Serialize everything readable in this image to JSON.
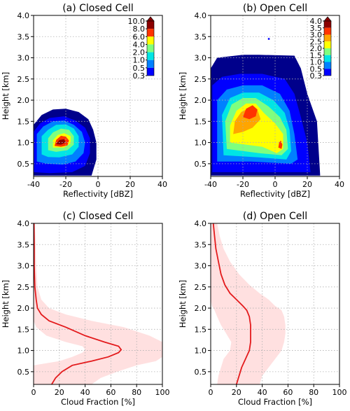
{
  "chart_data": [
    {
      "type": "heatmap",
      "title": "(a) Closed Cell",
      "xlabel": "Reflectivity [dBZ]",
      "ylabel": "Height [km]",
      "xlim": [
        -40,
        40
      ],
      "ylim": [
        0.2,
        4.0
      ],
      "xticks": [
        "-40",
        "-20",
        "0",
        "20",
        "40"
      ],
      "yticks": [
        "0.5",
        "1.0",
        "1.5",
        "2.0",
        "2.5",
        "3.0",
        "3.5",
        "4.0"
      ],
      "grid": true,
      "colorbar": {
        "placement": "inside upper-right",
        "levels": [
          0.3,
          0.5,
          1.0,
          2.0,
          4.0,
          6.0,
          8.0,
          10.0
        ],
        "labels": [
          "10.0",
          "8.0",
          "6.0",
          "4.0",
          "2.0",
          "1.0",
          "0.5",
          "0.3"
        ]
      },
      "contours": [
        {
          "level": 0.3,
          "color": "#00008b",
          "points": [
            [
              -40,
              0.22
            ],
            [
              -40,
              1.42
            ],
            [
              -35,
              1.65
            ],
            [
              -28,
              1.78
            ],
            [
              -20,
              1.8
            ],
            [
              -12,
              1.72
            ],
            [
              -6,
              1.55
            ],
            [
              -3,
              1.3
            ],
            [
              -1,
              1.0
            ],
            [
              -1,
              0.6
            ],
            [
              -4,
              0.22
            ]
          ]
        },
        {
          "level": 0.5,
          "color": "#0000ff",
          "points": [
            [
              -40,
              0.3
            ],
            [
              -40,
              1.25
            ],
            [
              -36,
              1.45
            ],
            [
              -30,
              1.58
            ],
            [
              -21,
              1.62
            ],
            [
              -14,
              1.52
            ],
            [
              -8,
              1.35
            ],
            [
              -5,
              1.1
            ],
            [
              -5,
              0.75
            ],
            [
              -8,
              0.45
            ],
            [
              -16,
              0.3
            ],
            [
              -30,
              0.28
            ]
          ]
        },
        {
          "level": 1.0,
          "color": "#0080ff",
          "points": [
            [
              -38,
              0.55
            ],
            [
              -38,
              1.2
            ],
            [
              -34,
              1.38
            ],
            [
              -28,
              1.5
            ],
            [
              -21,
              1.52
            ],
            [
              -15,
              1.42
            ],
            [
              -10,
              1.25
            ],
            [
              -8,
              1.0
            ],
            [
              -9,
              0.75
            ],
            [
              -14,
              0.55
            ],
            [
              -22,
              0.48
            ],
            [
              -32,
              0.5
            ]
          ]
        },
        {
          "level": 2.0,
          "color": "#00e5e5",
          "points": [
            [
              -35,
              0.72
            ],
            [
              -35,
              1.15
            ],
            [
              -31,
              1.3
            ],
            [
              -26,
              1.42
            ],
            [
              -20,
              1.43
            ],
            [
              -15,
              1.33
            ],
            [
              -12,
              1.15
            ],
            [
              -12,
              0.9
            ],
            [
              -16,
              0.72
            ],
            [
              -24,
              0.65
            ],
            [
              -31,
              0.66
            ]
          ]
        },
        {
          "level": 4.0,
          "color": "#7fff7f",
          "points": [
            [
              -31,
              0.82
            ],
            [
              -31,
              1.1
            ],
            [
              -28,
              1.24
            ],
            [
              -23,
              1.33
            ],
            [
              -18,
              1.3
            ],
            [
              -15,
              1.15
            ],
            [
              -15,
              0.95
            ],
            [
              -19,
              0.82
            ],
            [
              -26,
              0.78
            ]
          ]
        },
        {
          "level": 6.0,
          "color": "#ffff00",
          "points": [
            [
              -28,
              0.88
            ],
            [
              -28,
              1.05
            ],
            [
              -25,
              1.18
            ],
            [
              -21,
              1.22
            ],
            [
              -17,
              1.15
            ],
            [
              -17,
              0.98
            ],
            [
              -21,
              0.88
            ]
          ]
        },
        {
          "level": 8.0,
          "color": "#ff3300",
          "points": [
            [
              -27,
              0.92
            ],
            [
              -26,
              1.06
            ],
            [
              -23,
              1.16
            ],
            [
              -20,
              1.14
            ],
            [
              -18,
              1.05
            ],
            [
              -19,
              0.93
            ],
            [
              -23,
              0.9
            ]
          ]
        },
        {
          "level": 10.0,
          "color": "#8b0000",
          "points": [
            [
              -26,
              0.96
            ],
            [
              -24,
              1.06
            ],
            [
              -21,
              1.08
            ],
            [
              -20,
              1.0
            ],
            [
              -23,
              0.95
            ]
          ]
        }
      ]
    },
    {
      "type": "heatmap",
      "title": "(b) Open Cell",
      "xlabel": "Reflectivity [dBZ]",
      "ylabel": "Height [km]",
      "xlim": [
        -40,
        40
      ],
      "ylim": [
        0.2,
        4.0
      ],
      "xticks": [
        "-40",
        "-20",
        "0",
        "20",
        "40"
      ],
      "yticks": [
        "0.5",
        "1.0",
        "1.5",
        "2.0",
        "2.5",
        "3.0",
        "3.5",
        "4.0"
      ],
      "grid": true,
      "colorbar": {
        "placement": "inside upper-right",
        "levels": [
          0.3,
          0.5,
          1.0,
          1.5,
          2.0,
          2.5,
          3.0,
          3.5,
          4.0
        ],
        "labels": [
          "4.0",
          "3.5",
          "3.0",
          "2.5",
          "2.0",
          "1.5",
          "1.0",
          "0.5",
          "0.3"
        ]
      },
      "contours": [
        {
          "level": 0.3,
          "color": "#00008b",
          "points": [
            [
              -40,
              0.22
            ],
            [
              -40,
              2.75
            ],
            [
              -36,
              3.0
            ],
            [
              -20,
              3.07
            ],
            [
              -10,
              3.07
            ],
            [
              12,
              3.05
            ],
            [
              16,
              2.75
            ],
            [
              20,
              2.15
            ],
            [
              26,
              1.5
            ],
            [
              28,
              0.22
            ]
          ]
        },
        {
          "level": 0.5,
          "color": "#0000ff",
          "points": [
            [
              -39,
              0.3
            ],
            [
              -39,
              2.35
            ],
            [
              -33,
              2.55
            ],
            [
              -22,
              2.62
            ],
            [
              -8,
              2.62
            ],
            [
              6,
              2.5
            ],
            [
              12,
              2.15
            ],
            [
              16,
              1.6
            ],
            [
              20,
              1.0
            ],
            [
              22,
              0.3
            ]
          ]
        },
        {
          "level": 1.0,
          "color": "#0080ff",
          "points": [
            [
              -36,
              0.55
            ],
            [
              -36,
              2.0
            ],
            [
              -30,
              2.25
            ],
            [
              -20,
              2.35
            ],
            [
              -8,
              2.35
            ],
            [
              3,
              2.15
            ],
            [
              9,
              1.75
            ],
            [
              12,
              1.2
            ],
            [
              14,
              0.6
            ],
            [
              10,
              0.5
            ],
            [
              -15,
              0.55
            ]
          ]
        },
        {
          "level": 1.5,
          "color": "#00e5e5",
          "points": [
            [
              -32,
              0.7
            ],
            [
              -33,
              1.65
            ],
            [
              -28,
              2.05
            ],
            [
              -20,
              2.18
            ],
            [
              -10,
              2.18
            ],
            [
              -1,
              2.0
            ],
            [
              6,
              1.7
            ],
            [
              9,
              1.3
            ],
            [
              10,
              0.8
            ],
            [
              7,
              0.6
            ],
            [
              -10,
              0.65
            ]
          ]
        },
        {
          "level": 2.0,
          "color": "#7fff7f",
          "points": [
            [
              -30,
              0.85
            ],
            [
              -31,
              1.5
            ],
            [
              -27,
              1.9
            ],
            [
              -20,
              2.05
            ],
            [
              -12,
              2.05
            ],
            [
              -4,
              1.85
            ],
            [
              3,
              1.6
            ],
            [
              7,
              1.3
            ],
            [
              8,
              0.85
            ],
            [
              4,
              0.7
            ],
            [
              -10,
              0.75
            ]
          ]
        },
        {
          "level": 2.5,
          "color": "#ffff00",
          "points": [
            [
              -28,
              1.0
            ],
            [
              -28,
              1.4
            ],
            [
              -24,
              1.75
            ],
            [
              -18,
              1.92
            ],
            [
              -12,
              1.92
            ],
            [
              -7,
              1.7
            ],
            [
              0,
              1.45
            ],
            [
              5,
              1.2
            ],
            [
              5,
              0.85
            ],
            [
              1,
              0.75
            ],
            [
              -8,
              0.9
            ],
            [
              -18,
              0.95
            ]
          ]
        },
        {
          "level": 3.0,
          "color": "#ffa500",
          "points": [
            [
              -26,
              1.2
            ],
            [
              -25,
              1.5
            ],
            [
              -21,
              1.72
            ],
            [
              -16,
              1.82
            ],
            [
              -11,
              1.78
            ],
            [
              -9,
              1.55
            ],
            [
              -14,
              1.35
            ],
            [
              -20,
              1.25
            ]
          ]
        },
        {
          "level": 3.5,
          "color": "#ff3300",
          "points": [
            [
              -20,
              1.6
            ],
            [
              -18,
              1.8
            ],
            [
              -14,
              1.88
            ],
            [
              -11,
              1.78
            ],
            [
              -12,
              1.62
            ],
            [
              -16,
              1.55
            ]
          ]
        },
        {
          "level": 3.5,
          "color": "#ff3300",
          "points": [
            [
              2,
              0.88
            ],
            [
              2.5,
              1.0
            ],
            [
              3.5,
              1.05
            ],
            [
              4.5,
              0.95
            ],
            [
              4,
              0.85
            ]
          ]
        }
      ]
    },
    {
      "type": "line",
      "title": "(c) Closed Cell",
      "xlabel": "Cloud Fraction [%]",
      "ylabel": "Height [km]",
      "xlim": [
        0,
        100
      ],
      "ylim": [
        0.2,
        4.0
      ],
      "xticks": [
        "0",
        "20",
        "40",
        "60",
        "80",
        "100"
      ],
      "yticks": [
        "0.5",
        "1.0",
        "1.5",
        "2.0",
        "2.5",
        "3.0",
        "3.5",
        "4.0"
      ],
      "grid": true,
      "series": [
        {
          "color": "#e31a1c",
          "x": [
            14,
            17,
            22,
            30,
            45,
            58,
            66,
            68,
            66,
            55,
            40,
            25,
            12,
            6,
            3,
            2,
            1,
            0.5,
            0.5,
            0.3
          ],
          "y": [
            0.2,
            0.35,
            0.5,
            0.65,
            0.75,
            0.85,
            0.95,
            1.02,
            1.1,
            1.2,
            1.35,
            1.55,
            1.7,
            1.85,
            2.0,
            2.2,
            2.5,
            3.0,
            3.5,
            4.0
          ],
          "lower": [
            0,
            0,
            0,
            0,
            20,
            30,
            38,
            40,
            38,
            25,
            10,
            2,
            0,
            0,
            0,
            0,
            0,
            0,
            0,
            0
          ],
          "upper": [
            45,
            52,
            65,
            80,
            95,
            100,
            100,
            100,
            100,
            100,
            90,
            70,
            45,
            25,
            12,
            6,
            3,
            2,
            1.5,
            1
          ]
        }
      ]
    },
    {
      "type": "line",
      "title": "(d) Open Cell",
      "xlabel": "Cloud Fraction [%]",
      "ylabel": "Height [km]",
      "xlim": [
        0,
        100
      ],
      "ylim": [
        0.2,
        4.0
      ],
      "xticks": [
        "0",
        "20",
        "40",
        "60",
        "80",
        "100"
      ],
      "yticks": [
        "0.5",
        "1.0",
        "1.5",
        "2.0",
        "2.5",
        "3.0",
        "3.5",
        "4.0"
      ],
      "grid": true,
      "series": [
        {
          "color": "#e31a1c",
          "x": [
            20,
            22,
            24,
            27,
            30,
            31,
            31,
            31,
            30,
            28,
            25,
            20,
            15,
            11,
            8,
            6,
            4,
            3,
            2
          ],
          "y": [
            0.2,
            0.4,
            0.6,
            0.8,
            1.0,
            1.2,
            1.4,
            1.6,
            1.8,
            1.95,
            2.05,
            2.2,
            2.35,
            2.55,
            2.8,
            3.1,
            3.4,
            3.7,
            4.0
          ],
          "lower": [
            5,
            6,
            8,
            10,
            15,
            16,
            12,
            8,
            5,
            3,
            1,
            0,
            0,
            0,
            0,
            0,
            0,
            0,
            0
          ],
          "upper": [
            38,
            40,
            45,
            50,
            55,
            57,
            58,
            58,
            57,
            55,
            50,
            45,
            38,
            30,
            22,
            15,
            10,
            7,
            5
          ]
        }
      ]
    }
  ]
}
